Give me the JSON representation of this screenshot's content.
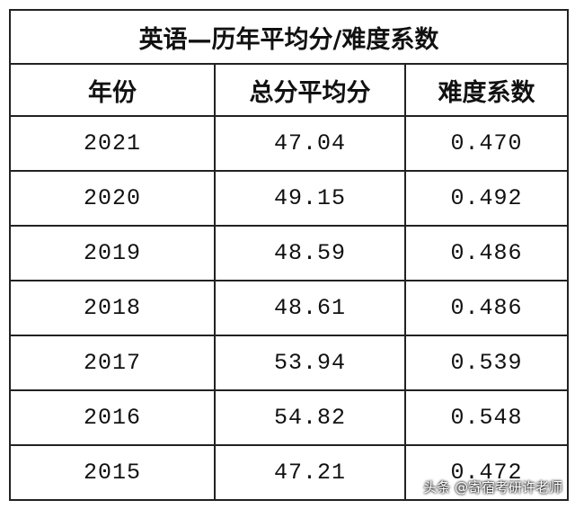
{
  "table": {
    "title": "英语—历年平均分/难度系数",
    "header": [
      "年份",
      "总分平均分",
      "难度系数"
    ],
    "rows": [
      [
        "2021",
        "47.04",
        "0.470"
      ],
      [
        "2020",
        "49.15",
        "0.492"
      ],
      [
        "2019",
        "48.59",
        "0.486"
      ],
      [
        "2018",
        "48.61",
        "0.486"
      ],
      [
        "2017",
        "53.94",
        "0.539"
      ],
      [
        "2016",
        "54.82",
        "0.548"
      ],
      [
        "2015",
        "47.21",
        "0.472"
      ]
    ]
  },
  "watermark": "头条 @寄宿考研许老师"
}
